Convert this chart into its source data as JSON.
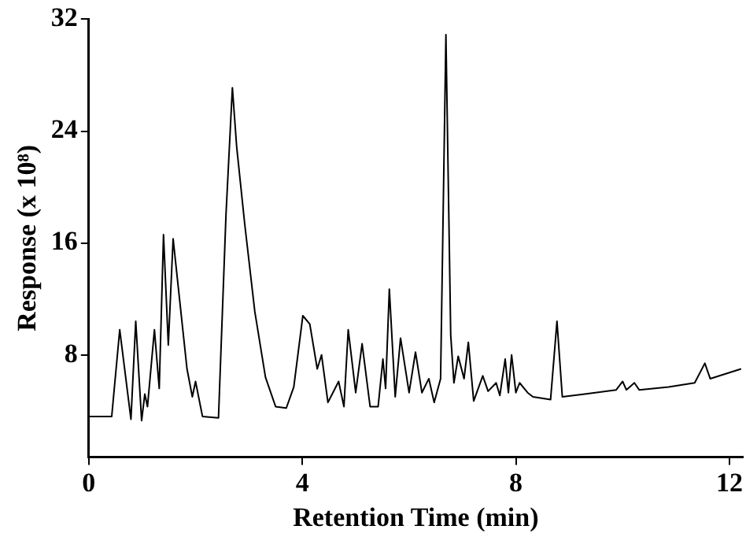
{
  "chart_data": {
    "type": "line",
    "xlabel": "Retention Time (min)",
    "ylabel": "Response (x 10⁸)",
    "xlim": [
      0,
      12.25
    ],
    "xticks": [
      0,
      4,
      8,
      12
    ],
    "ylim": [
      0.7,
      32
    ],
    "yticks": [
      8,
      16,
      24,
      32
    ],
    "grid": false,
    "legend": false,
    "marker": "none",
    "line_style": "solid",
    "series": [
      {
        "color": "#000000",
        "x": [
          0,
          0.43,
          0.58,
          0.79,
          0.88,
          0.99,
          1.05,
          1.1,
          1.23,
          1.32,
          1.4,
          1.49,
          1.58,
          1.84,
          1.94,
          2.0,
          2.13,
          2.43,
          2.57,
          2.69,
          2.77,
          2.92,
          3.11,
          3.31,
          3.5,
          3.7,
          3.84,
          4.01,
          4.14,
          4.28,
          4.36,
          4.48,
          4.68,
          4.78,
          4.86,
          5.0,
          5.12,
          5.27,
          5.42,
          5.51,
          5.56,
          5.63,
          5.74,
          5.84,
          6.0,
          6.12,
          6.24,
          6.37,
          6.47,
          6.59,
          6.69,
          6.78,
          6.84,
          6.92,
          7.03,
          7.11,
          7.21,
          7.38,
          7.48,
          7.63,
          7.7,
          7.8,
          7.86,
          7.92,
          8.0,
          8.07,
          8.22,
          8.32,
          8.65,
          8.77,
          8.87,
          9.29,
          9.88,
          10.0,
          10.07,
          10.22,
          10.31,
          10.86,
          11.35,
          11.54,
          11.64,
          12.22
        ],
        "values": [
          3.6,
          3.6,
          9.8,
          3.4,
          10.4,
          3.3,
          5.2,
          4.3,
          9.8,
          5.6,
          16.6,
          8.7,
          16.3,
          7,
          5,
          6.1,
          3.6,
          3.5,
          18,
          27.1,
          22.9,
          17.4,
          11.1,
          6.4,
          4.3,
          4.2,
          5.7,
          10.8,
          10.2,
          7,
          8,
          4.6,
          6.1,
          4.3,
          9.8,
          5.3,
          8.8,
          4.3,
          4.3,
          7.7,
          5.6,
          12.7,
          5,
          9.2,
          5.3,
          8.2,
          5.3,
          6.3,
          4.6,
          6.3,
          30.9,
          9.4,
          6,
          7.9,
          6.3,
          8.9,
          4.7,
          6.5,
          5.4,
          6,
          5.1,
          7.7,
          5.3,
          8,
          5.3,
          6,
          5.3,
          5,
          4.8,
          10.4,
          5,
          5.2,
          5.5,
          6.1,
          5.5,
          6,
          5.5,
          5.7,
          6,
          7.4,
          6.3,
          7
        ]
      }
    ]
  }
}
